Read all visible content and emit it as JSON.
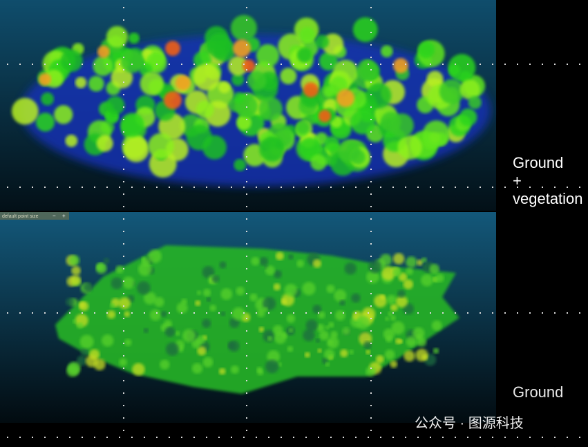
{
  "top_panel": {
    "label_lines": [
      "Ground",
      "+",
      "vegetation"
    ]
  },
  "bottom_panel": {
    "toolbar": {
      "label": "default point size",
      "minus": "−",
      "plus": "+"
    },
    "label": "Ground"
  },
  "watermark": {
    "text": "公众号 · 图源科技"
  }
}
